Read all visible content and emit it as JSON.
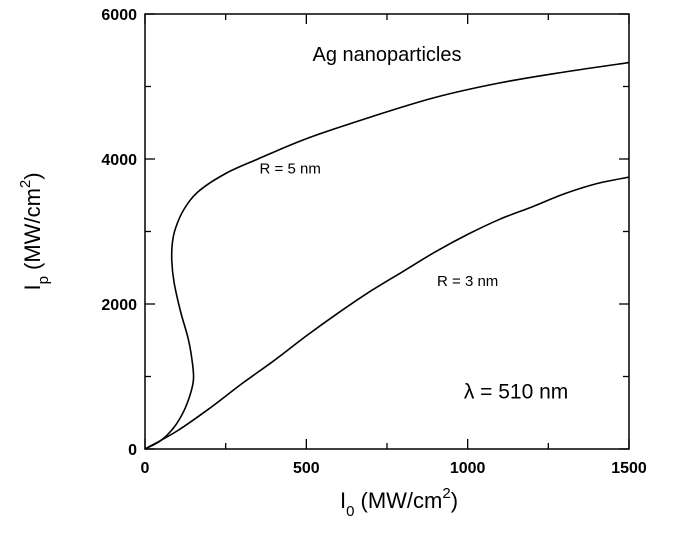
{
  "chart_data": {
    "type": "line",
    "title": "",
    "xlabel": {
      "main": "I",
      "sub": "0",
      "unit": " (MW/cm",
      "sup": "2",
      "close": ")"
    },
    "ylabel": {
      "main": "I",
      "sub": "p",
      "unit": " (MW/cm",
      "sup": "2",
      "close": ")"
    },
    "xlim": [
      0,
      1500
    ],
    "ylim": [
      0,
      6000
    ],
    "x_ticks": [
      0,
      500,
      1000,
      1500
    ],
    "x_tick_labels": [
      "0",
      "500",
      "1000",
      "1500"
    ],
    "y_ticks": [
      0,
      2000,
      4000,
      6000
    ],
    "y_tick_labels": [
      "0",
      "2000",
      "4000",
      "6000"
    ],
    "grid": false,
    "series": [
      {
        "name": "R = 5 nm",
        "points": [
          [
            0,
            0
          ],
          [
            50,
            120
          ],
          [
            90,
            300
          ],
          [
            120,
            520
          ],
          [
            140,
            750
          ],
          [
            150,
            950
          ],
          [
            148,
            1150
          ],
          [
            135,
            1500
          ],
          [
            110,
            1900
          ],
          [
            90,
            2300
          ],
          [
            83,
            2600
          ],
          [
            85,
            2850
          ],
          [
            95,
            3050
          ],
          [
            120,
            3300
          ],
          [
            165,
            3550
          ],
          [
            250,
            3800
          ],
          [
            350,
            4000
          ],
          [
            500,
            4280
          ],
          [
            700,
            4580
          ],
          [
            900,
            4850
          ],
          [
            1100,
            5050
          ],
          [
            1300,
            5200
          ],
          [
            1500,
            5330
          ]
        ]
      },
      {
        "name": "R = 3 nm",
        "points": [
          [
            0,
            0
          ],
          [
            100,
            250
          ],
          [
            200,
            560
          ],
          [
            300,
            900
          ],
          [
            400,
            1220
          ],
          [
            500,
            1560
          ],
          [
            600,
            1880
          ],
          [
            700,
            2180
          ],
          [
            800,
            2450
          ],
          [
            900,
            2720
          ],
          [
            1000,
            2960
          ],
          [
            1100,
            3170
          ],
          [
            1200,
            3340
          ],
          [
            1300,
            3520
          ],
          [
            1400,
            3660
          ],
          [
            1500,
            3750
          ]
        ]
      }
    ],
    "annotations": [
      {
        "text": "Ag nanoparticles",
        "x": 750,
        "y": 5350
      },
      {
        "text": "R = 5 nm",
        "x": 450,
        "y": 3800
      },
      {
        "text": "R = 3 nm",
        "x": 1000,
        "y": 2250
      },
      {
        "text": "λ = 510 nm",
        "x": 1150,
        "y": 700
      }
    ]
  }
}
